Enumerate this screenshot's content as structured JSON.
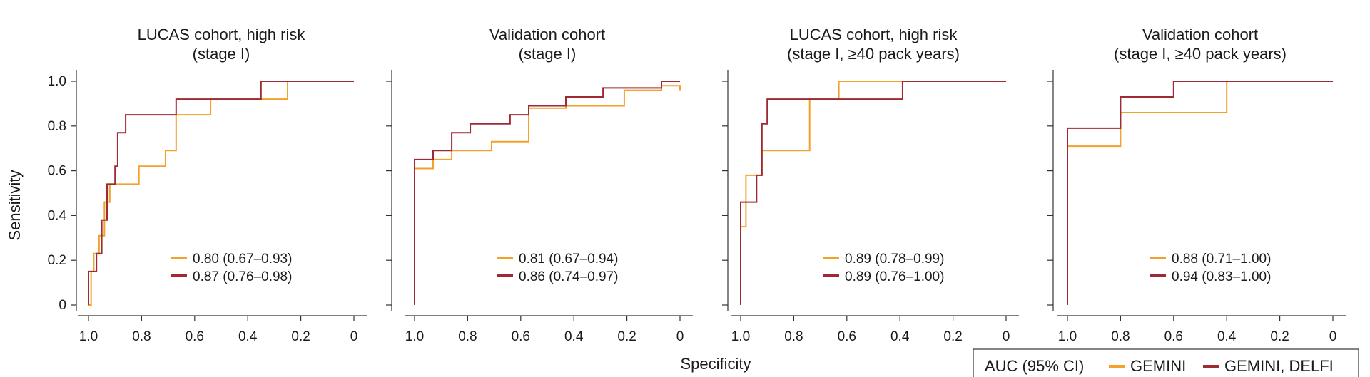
{
  "figure": {
    "ylabel": "Sensitivity",
    "xlabel": "Specificity",
    "legend": {
      "title": "AUC (95% CI)",
      "entries": [
        {
          "label": "GEMINI",
          "color": "#F2A12B"
        },
        {
          "label": "GEMINI, DELFI",
          "color": "#9E2A33"
        }
      ]
    }
  },
  "chart_data": [
    {
      "type": "line",
      "title": [
        "LUCAS cohort, high risk",
        "(stage I)"
      ],
      "xlabel": "Specificity",
      "ylabel": "Sensitivity",
      "xlim": [
        1,
        0
      ],
      "ylim": [
        0,
        1
      ],
      "x_ticks": [
        "1.0",
        "0.8",
        "0.6",
        "0.4",
        "0.2",
        "0"
      ],
      "y_ticks": [
        "0",
        "0.2",
        "0.4",
        "0.6",
        "0.8",
        "1.0"
      ],
      "series": [
        {
          "name": "GEMINI",
          "auc_label": "0.80 (0.67–0.93)",
          "color": "#F2A12B",
          "points": [
            [
              1.0,
              0
            ],
            [
              0.99,
              0
            ],
            [
              0.99,
              0.15
            ],
            [
              0.98,
              0.15
            ],
            [
              0.98,
              0.23
            ],
            [
              0.96,
              0.23
            ],
            [
              0.96,
              0.31
            ],
            [
              0.94,
              0.31
            ],
            [
              0.94,
              0.46
            ],
            [
              0.92,
              0.46
            ],
            [
              0.92,
              0.54
            ],
            [
              0.81,
              0.54
            ],
            [
              0.81,
              0.62
            ],
            [
              0.71,
              0.62
            ],
            [
              0.71,
              0.69
            ],
            [
              0.67,
              0.69
            ],
            [
              0.67,
              0.85
            ],
            [
              0.54,
              0.85
            ],
            [
              0.54,
              0.92
            ],
            [
              0.25,
              0.92
            ],
            [
              0.25,
              1.0
            ],
            [
              0,
              1.0
            ]
          ]
        },
        {
          "name": "GEMINI, DELFI",
          "auc_label": "0.87 (0.76–0.98)",
          "color": "#9E2A33",
          "points": [
            [
              1.0,
              0
            ],
            [
              1.0,
              0.15
            ],
            [
              0.97,
              0.15
            ],
            [
              0.97,
              0.23
            ],
            [
              0.95,
              0.23
            ],
            [
              0.95,
              0.38
            ],
            [
              0.93,
              0.38
            ],
            [
              0.93,
              0.54
            ],
            [
              0.9,
              0.54
            ],
            [
              0.9,
              0.62
            ],
            [
              0.89,
              0.62
            ],
            [
              0.89,
              0.77
            ],
            [
              0.86,
              0.77
            ],
            [
              0.86,
              0.85
            ],
            [
              0.67,
              0.85
            ],
            [
              0.67,
              0.92
            ],
            [
              0.35,
              0.92
            ],
            [
              0.35,
              1.0
            ],
            [
              0,
              1.0
            ]
          ]
        }
      ]
    },
    {
      "type": "line",
      "title": [
        "Validation cohort",
        "(stage I)"
      ],
      "xlabel": "Specificity",
      "ylabel": "Sensitivity",
      "xlim": [
        1,
        0
      ],
      "ylim": [
        0,
        1
      ],
      "x_ticks": [
        "1.0",
        "0.8",
        "0.6",
        "0.4",
        "0.2",
        "0"
      ],
      "y_ticks": [
        "0",
        "0.2",
        "0.4",
        "0.6",
        "0.8",
        "1.0"
      ],
      "series": [
        {
          "name": "GEMINI",
          "auc_label": "0.81 (0.67–0.94)",
          "color": "#F2A12B",
          "points": [
            [
              1.0,
              0.61
            ],
            [
              0.93,
              0.61
            ],
            [
              0.93,
              0.65
            ],
            [
              0.86,
              0.65
            ],
            [
              0.86,
              0.69
            ],
            [
              0.71,
              0.69
            ],
            [
              0.71,
              0.73
            ],
            [
              0.57,
              0.73
            ],
            [
              0.57,
              0.88
            ],
            [
              0.43,
              0.88
            ],
            [
              0.43,
              0.89
            ],
            [
              0.21,
              0.89
            ],
            [
              0.21,
              0.96
            ],
            [
              0.07,
              0.96
            ],
            [
              0.07,
              0.98
            ],
            [
              0,
              0.98
            ],
            [
              0,
              0.96
            ]
          ]
        },
        {
          "name": "GEMINI, DELFI",
          "auc_label": "0.86 (0.74–0.97)",
          "color": "#9E2A33",
          "points": [
            [
              1.0,
              0
            ],
            [
              1.0,
              0.65
            ],
            [
              0.93,
              0.65
            ],
            [
              0.93,
              0.69
            ],
            [
              0.86,
              0.69
            ],
            [
              0.86,
              0.77
            ],
            [
              0.79,
              0.77
            ],
            [
              0.79,
              0.81
            ],
            [
              0.64,
              0.81
            ],
            [
              0.64,
              0.85
            ],
            [
              0.57,
              0.85
            ],
            [
              0.57,
              0.89
            ],
            [
              0.43,
              0.89
            ],
            [
              0.43,
              0.93
            ],
            [
              0.29,
              0.93
            ],
            [
              0.29,
              0.97
            ],
            [
              0.07,
              0.97
            ],
            [
              0.07,
              1.0
            ],
            [
              0,
              1.0
            ]
          ]
        }
      ]
    },
    {
      "type": "line",
      "title": [
        "LUCAS cohort, high risk",
        "(stage I, ≥40 pack years)"
      ],
      "xlabel": "Specificity",
      "ylabel": "Sensitivity",
      "xlim": [
        1,
        0
      ],
      "ylim": [
        0,
        1
      ],
      "x_ticks": [
        "1.0",
        "0.8",
        "0.6",
        "0.4",
        "0.2",
        "0"
      ],
      "y_ticks": [
        "0",
        "0.2",
        "0.4",
        "0.6",
        "0.8",
        "1.0"
      ],
      "series": [
        {
          "name": "GEMINI",
          "auc_label": "0.89 (0.78–0.99)",
          "color": "#F2A12B",
          "points": [
            [
              1.0,
              0.35
            ],
            [
              0.98,
              0.35
            ],
            [
              0.98,
              0.58
            ],
            [
              0.92,
              0.58
            ],
            [
              0.92,
              0.69
            ],
            [
              0.74,
              0.69
            ],
            [
              0.74,
              0.92
            ],
            [
              0.63,
              0.92
            ],
            [
              0.63,
              1.0
            ],
            [
              0,
              1.0
            ]
          ]
        },
        {
          "name": "GEMINI, DELFI",
          "auc_label": "0.89 (0.76–1.00)",
          "color": "#9E2A33",
          "points": [
            [
              1.0,
              0
            ],
            [
              1.0,
              0.46
            ],
            [
              0.94,
              0.46
            ],
            [
              0.94,
              0.58
            ],
            [
              0.92,
              0.58
            ],
            [
              0.92,
              0.81
            ],
            [
              0.9,
              0.81
            ],
            [
              0.9,
              0.92
            ],
            [
              0.39,
              0.92
            ],
            [
              0.39,
              1.0
            ],
            [
              0,
              1.0
            ]
          ]
        }
      ]
    },
    {
      "type": "line",
      "title": [
        "Validation cohort",
        "(stage I, ≥40 pack years)"
      ],
      "xlabel": "Specificity",
      "ylabel": "Sensitivity",
      "xlim": [
        1,
        0
      ],
      "ylim": [
        0,
        1
      ],
      "x_ticks": [
        "1.0",
        "0.8",
        "0.6",
        "0.4",
        "0.2",
        "0"
      ],
      "y_ticks": [
        "0",
        "0.2",
        "0.4",
        "0.6",
        "0.8",
        "1.0"
      ],
      "series": [
        {
          "name": "GEMINI",
          "auc_label": "0.88 (0.71–1.00)",
          "color": "#F2A12B",
          "points": [
            [
              1.0,
              0.71
            ],
            [
              0.8,
              0.71
            ],
            [
              0.8,
              0.86
            ],
            [
              0.4,
              0.86
            ],
            [
              0.4,
              1.0
            ],
            [
              0,
              1.0
            ]
          ]
        },
        {
          "name": "GEMINI, DELFI",
          "auc_label": "0.94 (0.83–1.00)",
          "color": "#9E2A33",
          "points": [
            [
              1.0,
              0
            ],
            [
              1.0,
              0.79
            ],
            [
              0.8,
              0.79
            ],
            [
              0.8,
              0.93
            ],
            [
              0.6,
              0.93
            ],
            [
              0.6,
              1.0
            ],
            [
              0,
              1.0
            ]
          ]
        }
      ]
    }
  ]
}
